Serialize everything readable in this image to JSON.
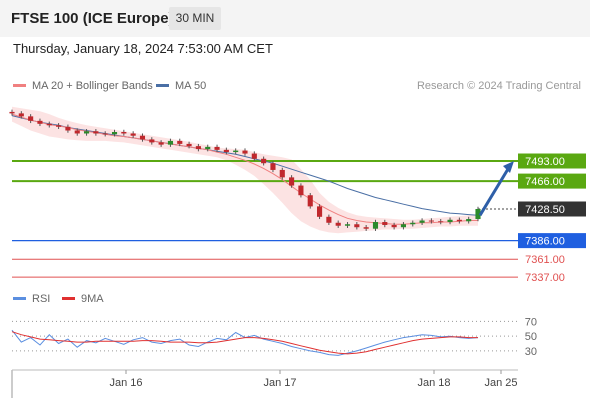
{
  "header": {
    "instrument": "FTSE 100 (ICE Europe)",
    "timeframe": "30 MIN"
  },
  "datetime": "Thursday, January 18, 2024 7:53:00 AM CET",
  "legend": {
    "items": [
      {
        "label": "MA 20 + Bollinger Bands",
        "color": "#f08080"
      },
      {
        "label": "MA 50",
        "color": "#4a6fa5"
      }
    ],
    "credit": "Research © 2024 Trading Central"
  },
  "rsi_legend": {
    "items": [
      {
        "label": "RSI",
        "color": "#5b8fe0"
      },
      {
        "label": "9MA",
        "color": "#e03030"
      }
    ]
  },
  "colors": {
    "resistance": "#5aa811",
    "support_blue": "#1f5fe0",
    "support_red": "#e05050",
    "current": "#333333",
    "bollinger_fill": "#fbd9d9",
    "arrow": "#2e5fa8"
  },
  "chart_data": [
    {
      "type": "candlestick",
      "title": "FTSE 100 (ICE Europe)",
      "timeframe": "30 MIN",
      "x_ticks": [
        "Jan 16",
        "Jan 17",
        "Jan 18",
        "Jan 25"
      ],
      "ylim": [
        7325,
        7575
      ],
      "series": [
        {
          "name": "Price",
          "values": [
            7557,
            7553,
            7547,
            7543,
            7541,
            7539,
            7534,
            7530,
            7533,
            7530,
            7529,
            7532,
            7530,
            7527,
            7522,
            7518,
            7515,
            7520,
            7516,
            7513,
            7509,
            7512,
            7508,
            7505,
            7507,
            7503,
            7496,
            7490,
            7481,
            7471,
            7460,
            7447,
            7432,
            7418,
            7410,
            7406,
            7408,
            7404,
            7402,
            7411,
            7407,
            7404,
            7408,
            7410,
            7413,
            7412,
            7411,
            7414,
            7412,
            7415,
            7428.5
          ]
        },
        {
          "name": "MA 20",
          "values": [
            7556,
            7552,
            7548,
            7545,
            7542,
            7540,
            7538,
            7535,
            7533,
            7531,
            7529,
            7527,
            7526,
            7524,
            7522,
            7520,
            7518,
            7516,
            7514,
            7512,
            7510,
            7508,
            7505,
            7502,
            7498,
            7494,
            7489,
            7483,
            7476,
            7468,
            7459,
            7450,
            7442,
            7434,
            7427,
            7421,
            7416,
            7413,
            7411,
            7410,
            7409,
            7408,
            7408,
            7409,
            7410,
            7410,
            7411,
            7411,
            7412,
            7413,
            7413
          ]
        },
        {
          "name": "MA 50",
          "values": [
            7554,
            7551,
            7548,
            7545,
            7543,
            7541,
            7538,
            7536,
            7534,
            7532,
            7530,
            7528,
            7526,
            7524,
            7522,
            7520,
            7518,
            7516,
            7514,
            7512,
            7510,
            7508,
            7506,
            7504,
            7502,
            7499,
            7496,
            7493,
            7490,
            7486,
            7482,
            7478,
            7474,
            7470,
            7466,
            7461,
            7456,
            7452,
            7448,
            7444,
            7441,
            7438,
            7435,
            7432,
            7429,
            7427,
            7425,
            7423,
            7422,
            7421,
            7420
          ]
        },
        {
          "name": "Bollinger Upper",
          "values": [
            7566,
            7564,
            7562,
            7560,
            7556,
            7551,
            7547,
            7544,
            7541,
            7539,
            7537,
            7535,
            7533,
            7531,
            7529,
            7527,
            7525,
            7523,
            7521,
            7519,
            7516,
            7514,
            7511,
            7510,
            7509,
            7508,
            7505,
            7502,
            7500,
            7498,
            7495,
            7482,
            7468,
            7450,
            7438,
            7430,
            7424,
            7420,
            7418,
            7417,
            7416,
            7415,
            7414,
            7414,
            7415,
            7416,
            7417,
            7418,
            7419,
            7420,
            7421
          ]
        },
        {
          "name": "Bollinger Lower",
          "values": [
            7546,
            7540,
            7534,
            7530,
            7526,
            7524,
            7522,
            7521,
            7520,
            7520,
            7520,
            7519,
            7518,
            7516,
            7514,
            7512,
            7510,
            7508,
            7506,
            7504,
            7502,
            7500,
            7498,
            7494,
            7488,
            7481,
            7473,
            7462,
            7450,
            7437,
            7423,
            7412,
            7405,
            7400,
            7397,
            7396,
            7397,
            7398,
            7399,
            7400,
            7401,
            7401,
            7402,
            7402,
            7403,
            7404,
            7405,
            7405,
            7406,
            7406,
            7406
          ]
        }
      ],
      "levels": [
        {
          "value": 7493.0,
          "label": "7493.00",
          "kind": "resistance"
        },
        {
          "value": 7466.0,
          "label": "7466.00",
          "kind": "resistance"
        },
        {
          "value": 7428.5,
          "label": "7428.50",
          "kind": "current"
        },
        {
          "value": 7386.0,
          "label": "7386.00",
          "kind": "support"
        },
        {
          "value": 7361.0,
          "label": "7361.00",
          "kind": "support-minor"
        },
        {
          "value": 7337.0,
          "label": "7337.00",
          "kind": "support-minor"
        }
      ],
      "projection": {
        "from": 7420,
        "to": 7493
      }
    },
    {
      "type": "line",
      "title": "RSI",
      "ylim": [
        15,
        80
      ],
      "y_ticks": [
        70,
        50,
        30
      ],
      "series": [
        {
          "name": "RSI",
          "values": [
            58,
            42,
            48,
            38,
            52,
            40,
            46,
            35,
            44,
            41,
            47,
            43,
            39,
            45,
            48,
            42,
            40,
            44,
            46,
            38,
            36,
            42,
            47,
            45,
            55,
            48,
            51,
            46,
            43,
            40,
            36,
            33,
            30,
            28,
            25,
            24,
            27,
            30,
            34,
            38,
            42,
            45,
            48,
            50,
            52,
            51,
            49,
            50,
            48,
            47,
            48
          ]
        },
        {
          "name": "9MA",
          "values": [
            56,
            52,
            49,
            46,
            45,
            44,
            43,
            42,
            42,
            43,
            43,
            43,
            43,
            43,
            44,
            44,
            43,
            42,
            42,
            42,
            41,
            41,
            42,
            44,
            46,
            48,
            48,
            47,
            45,
            43,
            40,
            37,
            34,
            31,
            29,
            27,
            26,
            27,
            29,
            32,
            35,
            38,
            41,
            44,
            46,
            47,
            48,
            49,
            49,
            48,
            48
          ]
        }
      ]
    }
  ]
}
